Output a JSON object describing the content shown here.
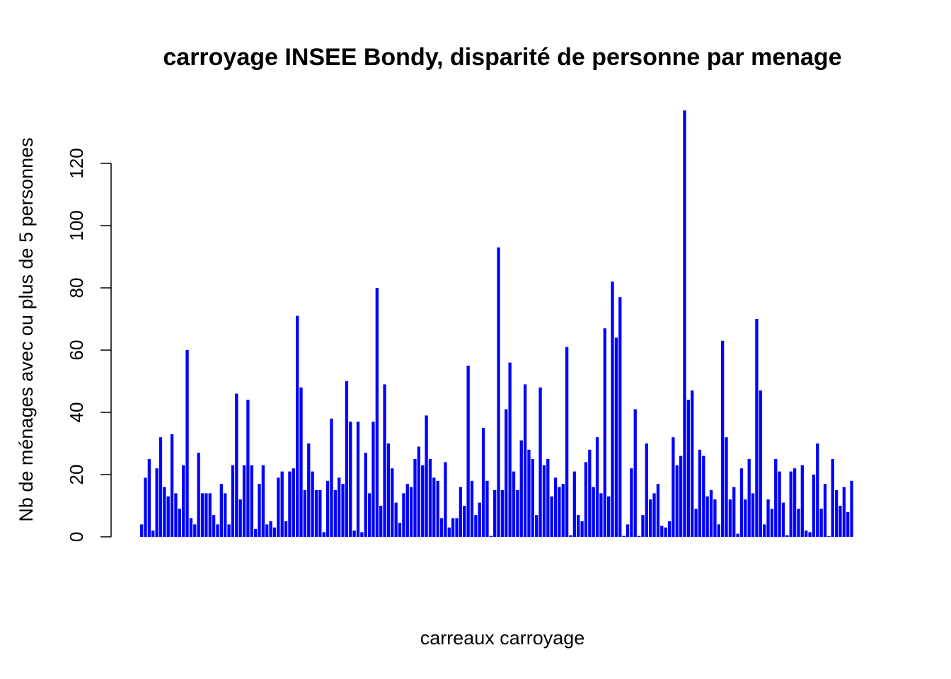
{
  "chart_data": {
    "type": "bar",
    "title": "carroyage INSEE Bondy, disparité de personne par menage",
    "xlabel": "carreaux carroyage",
    "ylabel": "Nb de ménages avec ou plus de 5 personnes",
    "ylim": [
      0,
      137
    ],
    "yticks": [
      0,
      20,
      40,
      60,
      80,
      100,
      120
    ],
    "bar_color": "#0000ff",
    "grid": false,
    "legend": "none",
    "values": [
      4,
      19,
      25,
      2,
      22,
      32,
      16,
      13,
      33,
      14,
      9,
      23,
      60,
      6,
      4,
      27,
      14,
      14,
      14,
      7,
      4,
      17,
      14,
      4,
      23,
      46,
      12,
      23,
      44,
      23,
      2.5,
      17,
      23,
      4,
      5,
      3,
      19,
      21,
      5,
      21,
      22,
      71,
      48,
      15,
      30,
      21,
      15,
      15,
      1.5,
      18,
      38,
      15,
      19,
      17,
      50,
      37,
      2,
      37,
      1.5,
      27,
      14,
      37,
      80,
      10,
      49,
      30,
      22,
      11,
      4.5,
      14,
      17,
      16,
      25,
      29,
      23,
      39,
      25,
      19,
      18,
      6,
      24,
      3,
      6,
      6,
      16,
      10,
      55,
      18,
      7,
      11,
      35,
      18,
      0.3,
      15,
      93,
      15,
      41,
      56,
      21,
      15,
      31,
      49,
      28,
      25,
      7,
      48,
      23,
      25,
      13,
      19,
      16,
      17,
      61,
      0.5,
      21,
      7,
      5,
      24,
      28,
      16,
      32,
      14,
      67,
      13,
      82,
      64,
      77,
      0.3,
      4,
      22,
      41,
      0.3,
      7,
      30,
      12,
      14,
      17,
      3.5,
      3,
      5,
      32,
      23,
      26,
      137,
      44,
      47,
      9,
      28,
      26,
      13,
      15,
      12,
      4,
      63,
      32,
      12,
      16,
      1,
      22,
      12,
      25,
      14,
      70,
      47,
      4,
      12,
      9,
      25,
      21,
      11,
      0.5,
      21,
      22,
      9,
      23,
      2,
      1.5,
      20,
      30,
      9,
      17,
      0.2,
      25,
      15,
      10,
      16,
      8,
      18
    ]
  }
}
